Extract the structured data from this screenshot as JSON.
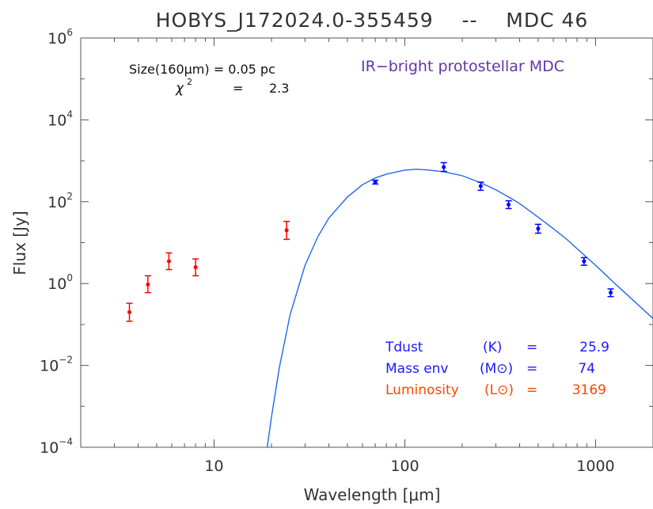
{
  "chart_data": {
    "type": "scatter",
    "title": "HOBYS_J172024.0-355459    --    MDC 46",
    "xlabel": "Wavelength [μm]",
    "ylabel": "Flux [Jy]",
    "x_scale": "log",
    "y_scale": "log",
    "xlim": [
      2,
      2000
    ],
    "ylim": [
      0.0001,
      1000000
    ],
    "x_ticks": [
      {
        "value": 10,
        "label": "10"
      },
      {
        "value": 100,
        "label": "100"
      },
      {
        "value": 1000,
        "label": "1000"
      }
    ],
    "y_ticks": [
      {
        "value": 0.0001,
        "base": "10",
        "exp": "−4"
      },
      {
        "value": 0.01,
        "base": "10",
        "exp": "−2"
      },
      {
        "value": 1,
        "base": "10",
        "exp": "0"
      },
      {
        "value": 100,
        "base": "10",
        "exp": "2"
      },
      {
        "value": 10000,
        "base": "10",
        "exp": "4"
      },
      {
        "value": 1000000,
        "base": "10",
        "exp": "6"
      }
    ],
    "grid": false,
    "series": [
      {
        "color": "#ff0000",
        "points": [
          {
            "x": 3.6,
            "y": 0.2,
            "ylo": 0.12,
            "yhi": 0.33
          },
          {
            "x": 4.5,
            "y": 0.95,
            "ylo": 0.6,
            "yhi": 1.55
          },
          {
            "x": 5.8,
            "y": 3.5,
            "ylo": 2.2,
            "yhi": 5.6
          },
          {
            "x": 8.0,
            "y": 2.5,
            "ylo": 1.55,
            "yhi": 4.0
          },
          {
            "x": 24,
            "y": 20,
            "ylo": 12,
            "yhi": 33
          }
        ]
      },
      {
        "color": "#0000ff",
        "points": [
          {
            "x": 70,
            "y": 300,
            "ylo": 270,
            "yhi": 335
          },
          {
            "x": 160,
            "y": 700,
            "ylo": 550,
            "yhi": 900
          },
          {
            "x": 250,
            "y": 240,
            "ylo": 190,
            "yhi": 300
          },
          {
            "x": 350,
            "y": 85,
            "ylo": 68,
            "yhi": 105
          },
          {
            "x": 500,
            "y": 22,
            "ylo": 17,
            "yhi": 28
          },
          {
            "x": 870,
            "y": 3.5,
            "ylo": 2.8,
            "yhi": 4.3
          },
          {
            "x": 1200,
            "y": 0.6,
            "ylo": 0.48,
            "yhi": 0.74
          }
        ]
      }
    ],
    "fit_curve": {
      "color": "#2266ee",
      "points": [
        [
          19,
          0.0001
        ],
        [
          20,
          0.00055
        ],
        [
          22,
          0.009
        ],
        [
          25,
          0.17
        ],
        [
          30,
          2.8
        ],
        [
          35,
          14
        ],
        [
          40,
          40
        ],
        [
          50,
          130
        ],
        [
          60,
          260
        ],
        [
          70,
          380
        ],
        [
          80,
          470
        ],
        [
          100,
          590
        ],
        [
          115,
          620
        ],
        [
          130,
          600
        ],
        [
          160,
          540
        ],
        [
          200,
          430
        ],
        [
          250,
          290
        ],
        [
          300,
          195
        ],
        [
          350,
          130
        ],
        [
          400,
          90
        ],
        [
          500,
          42
        ],
        [
          600,
          22
        ],
        [
          700,
          12.5
        ],
        [
          870,
          5
        ],
        [
          1000,
          2.8
        ],
        [
          1200,
          1.25
        ],
        [
          1500,
          0.48
        ],
        [
          2000,
          0.14
        ]
      ]
    },
    "annotations": {
      "size_label": "Size(160μm) = 0.05 pc",
      "chi2_label": "χ",
      "chi2_sup": "2",
      "chi2_eq": "=",
      "chi2_value": "2.3",
      "classification": "IR−bright protostellar MDC",
      "classification_color": "#6633aa",
      "tdust_label": "Tdust",
      "tdust_unit": "(K)",
      "tdust_eq": "=",
      "tdust_value": "25.9",
      "mass_label": "Mass env",
      "mass_unit": "(M⊙)",
      "mass_eq": "=",
      "mass_value": "74",
      "lum_label": "Luminosity",
      "lum_unit": "(L⊙)",
      "lum_eq": "=",
      "lum_value": "3169",
      "params_color": "#1a1aff",
      "lum_color": "#ff4400"
    }
  }
}
